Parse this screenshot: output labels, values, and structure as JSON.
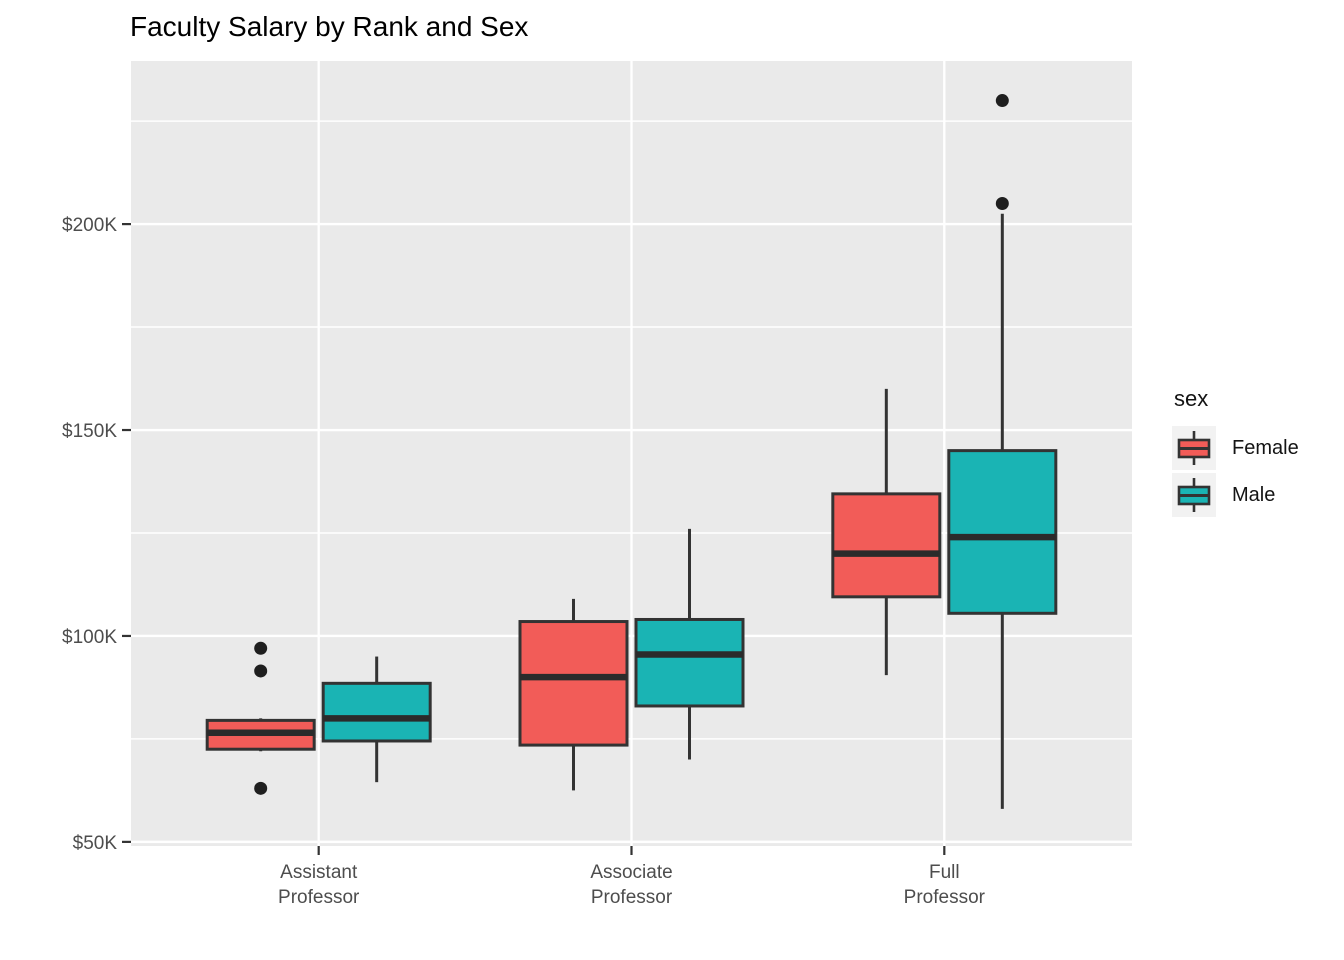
{
  "chart_data": {
    "type": "boxplot",
    "title": "Faculty Salary by Rank and Sex",
    "unit": "USD thousands (K)",
    "ylim": [
      49,
      239.6
    ],
    "y_axis": {
      "ticks": [
        {
          "value": 200,
          "label": "$200K"
        },
        {
          "value": 150,
          "label": "$150K"
        },
        {
          "value": 100,
          "label": "$100K"
        },
        {
          "value": 50,
          "label": "$50K"
        }
      ],
      "minor_ticks": [
        225,
        175,
        125,
        75
      ]
    },
    "categories": [
      {
        "id": "assistant-professor",
        "line1": "Assistant",
        "line2": "Professor"
      },
      {
        "id": "associate-professor",
        "line1": "Associate",
        "line2": "Professor"
      },
      {
        "id": "full-professor",
        "line1": "Full",
        "line2": "Professor"
      }
    ],
    "legend": {
      "title": "sex",
      "entries": [
        {
          "label": "Female",
          "color": "#F25C58"
        },
        {
          "label": "Male",
          "color": "#1AB4B4"
        }
      ]
    },
    "series": [
      {
        "name": "Female",
        "color": "#F25C58",
        "boxes": [
          {
            "category": "Assistant Professor",
            "whisker_low": 72,
            "q1": 72.5,
            "median": 76.5,
            "q3": 79.5,
            "whisker_high": 80,
            "outliers": [
              97,
              91.5,
              63
            ]
          },
          {
            "category": "Associate Professor",
            "whisker_low": 62.5,
            "q1": 73.5,
            "median": 90,
            "q3": 103.5,
            "whisker_high": 109,
            "outliers": []
          },
          {
            "category": "Full Professor",
            "whisker_low": 90.5,
            "q1": 109.5,
            "median": 120,
            "q3": 134.5,
            "whisker_high": 160,
            "outliers": []
          }
        ]
      },
      {
        "name": "Male",
        "color": "#1AB4B4",
        "boxes": [
          {
            "category": "Assistant Professor",
            "whisker_low": 64.5,
            "q1": 74.5,
            "median": 80,
            "q3": 88.5,
            "whisker_high": 95,
            "outliers": []
          },
          {
            "category": "Associate Professor",
            "whisker_low": 70,
            "q1": 83,
            "median": 95.5,
            "q3": 104,
            "whisker_high": 126,
            "outliers": []
          },
          {
            "category": "Full Professor",
            "whisker_low": 58,
            "q1": 105.5,
            "median": 124,
            "q3": 145,
            "whisker_high": 202.5,
            "outliers": [
              205,
              230
            ]
          }
        ]
      }
    ],
    "colors": {
      "panel_background": "#EAEAEA",
      "gridline": "#FFFFFF",
      "box_outline": "#333333",
      "median_line": "#2B2B2B",
      "outlier_dot": "#1F1F1F",
      "axis_text": "#4D4D4D",
      "tick_mark": "#333333",
      "title_text": "#000000",
      "legend_key_background": "#F2F2F2"
    }
  }
}
